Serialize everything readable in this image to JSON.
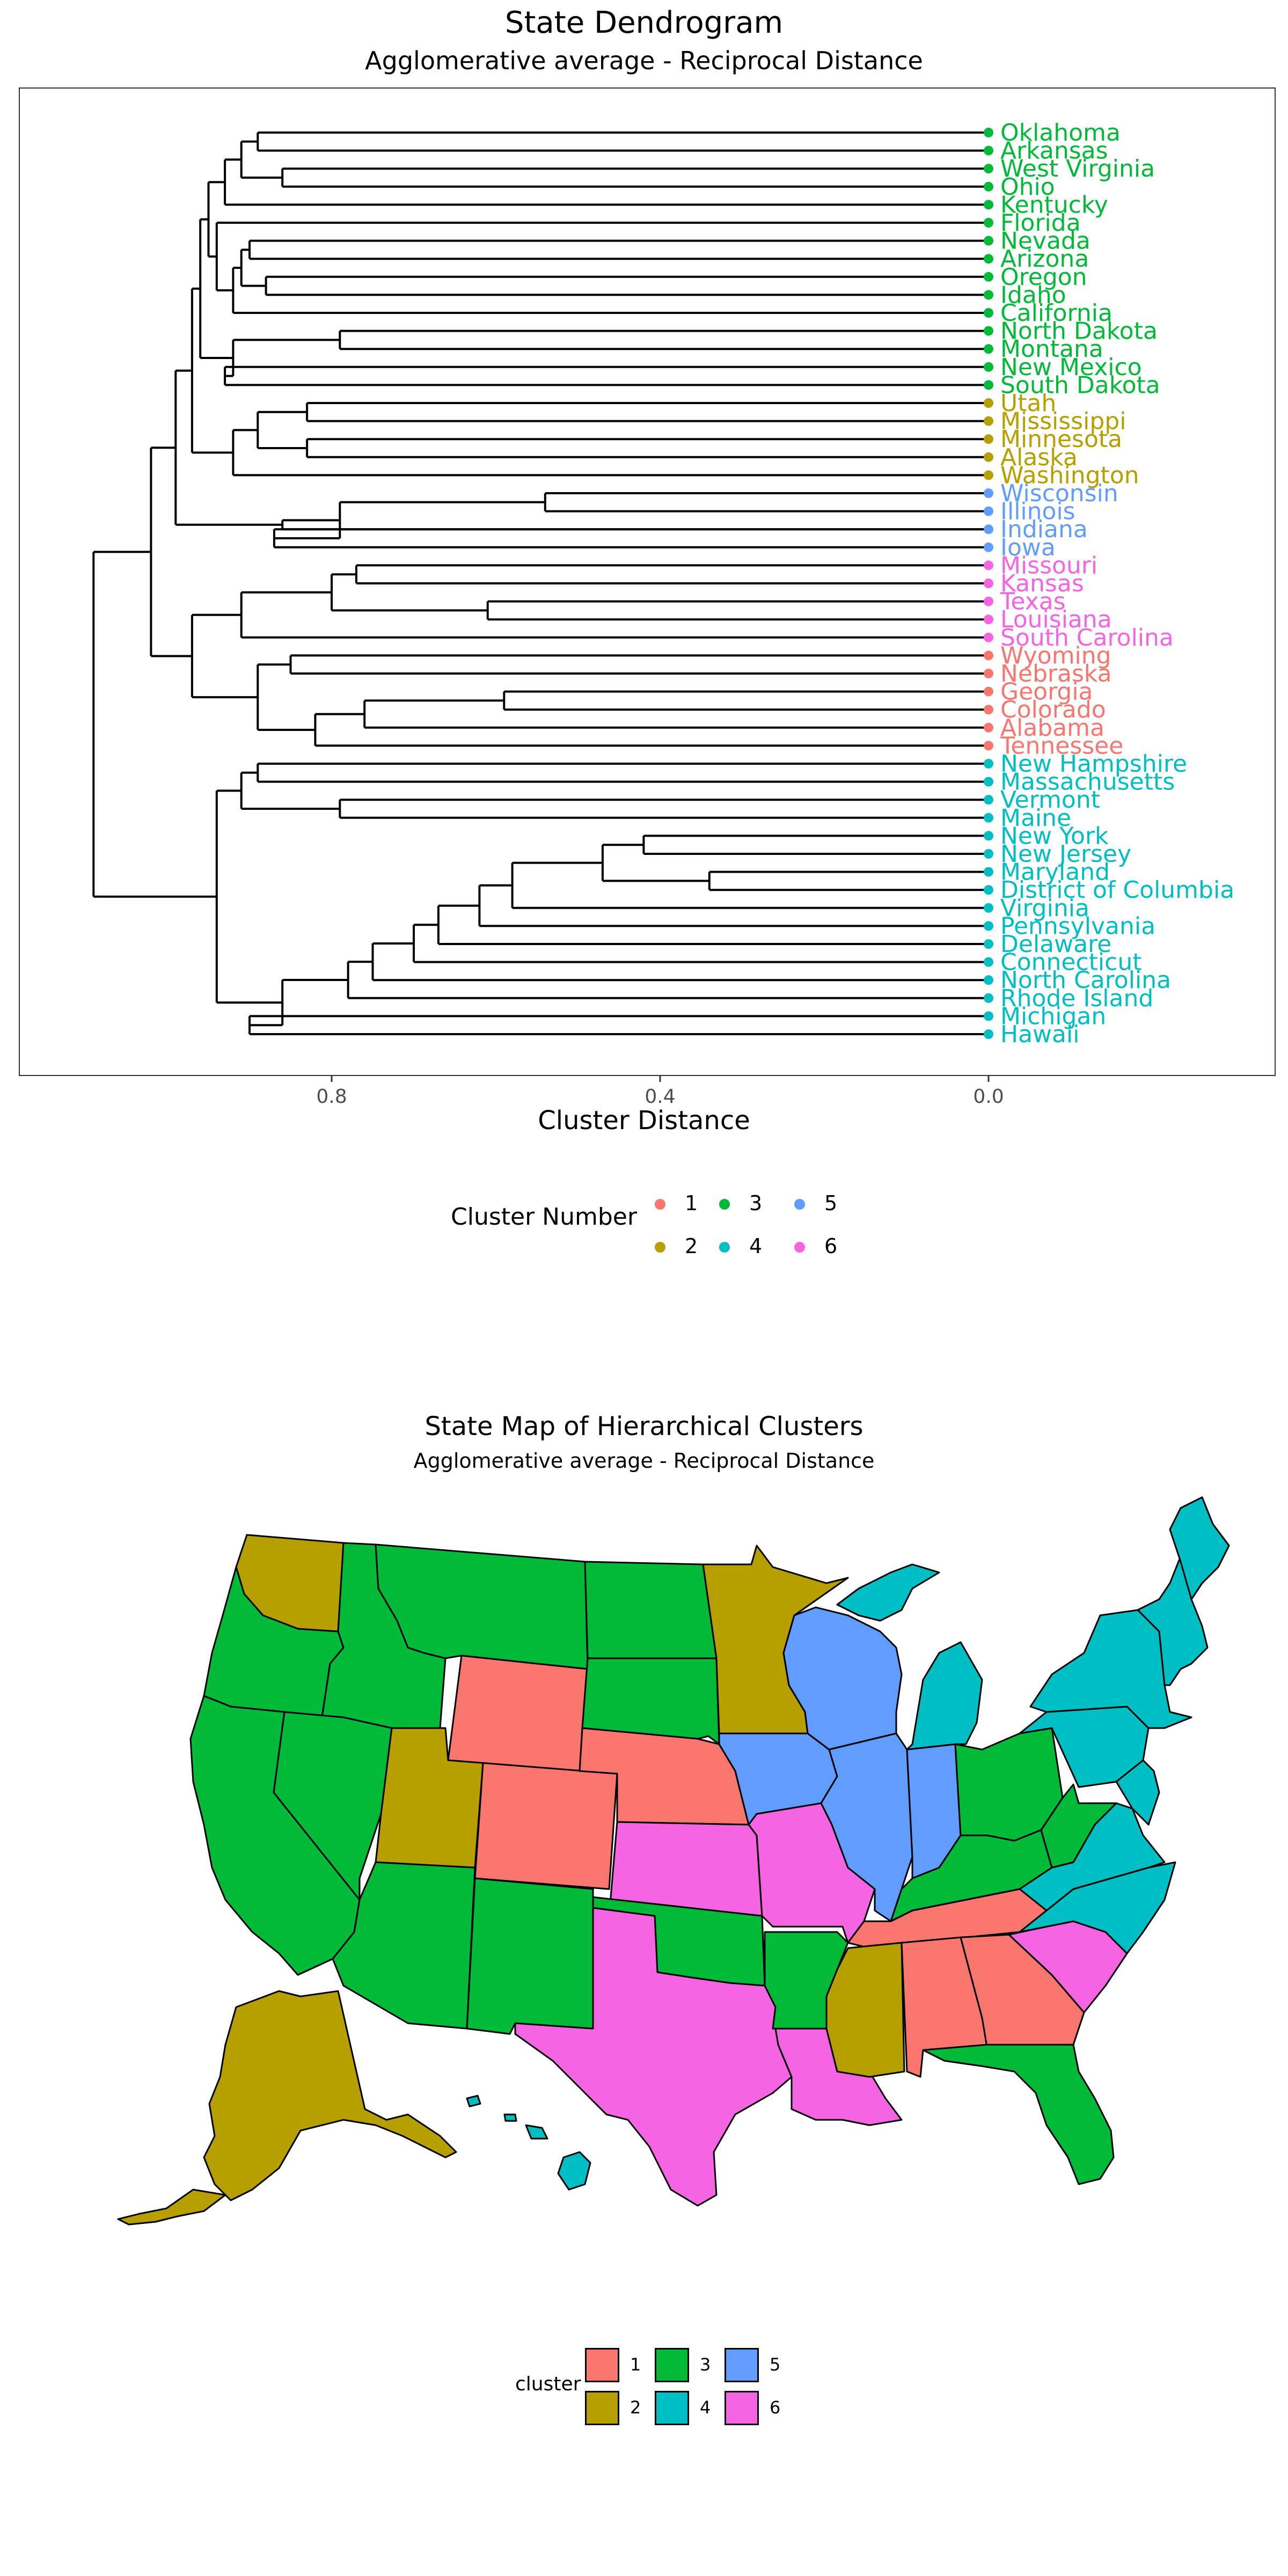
{
  "chart_data": [
    {
      "type": "dendrogram",
      "title": "State Dendrogram",
      "subtitle": "Agglomerative average - Reciprocal Distance",
      "xlabel": "Cluster Distance",
      "x_ticks": [
        "0.8",
        "0.4",
        "0.0"
      ],
      "x_tick_values": [
        0.8,
        0.4,
        0.0
      ],
      "xlim": [
        1.12,
        -0.7
      ],
      "grid": false,
      "legend_title": "Cluster Number",
      "legend_position": "bottom",
      "leaves": [
        {
          "label": "Oklahoma",
          "cluster": 3
        },
        {
          "label": "Arkansas",
          "cluster": 3
        },
        {
          "label": "West Virginia",
          "cluster": 3
        },
        {
          "label": "Ohio",
          "cluster": 3
        },
        {
          "label": "Kentucky",
          "cluster": 3
        },
        {
          "label": "Florida",
          "cluster": 3
        },
        {
          "label": "Nevada",
          "cluster": 3
        },
        {
          "label": "Arizona",
          "cluster": 3
        },
        {
          "label": "Oregon",
          "cluster": 3
        },
        {
          "label": "Idaho",
          "cluster": 3
        },
        {
          "label": "California",
          "cluster": 3
        },
        {
          "label": "North Dakota",
          "cluster": 3
        },
        {
          "label": "Montana",
          "cluster": 3
        },
        {
          "label": "New Mexico",
          "cluster": 3
        },
        {
          "label": "South Dakota",
          "cluster": 3
        },
        {
          "label": "Utah",
          "cluster": 2
        },
        {
          "label": "Mississippi",
          "cluster": 2
        },
        {
          "label": "Minnesota",
          "cluster": 2
        },
        {
          "label": "Alaska",
          "cluster": 2
        },
        {
          "label": "Washington",
          "cluster": 2
        },
        {
          "label": "Wisconsin",
          "cluster": 5
        },
        {
          "label": "Illinois",
          "cluster": 5
        },
        {
          "label": "Indiana",
          "cluster": 5
        },
        {
          "label": "Iowa",
          "cluster": 5
        },
        {
          "label": "Missouri",
          "cluster": 6
        },
        {
          "label": "Kansas",
          "cluster": 6
        },
        {
          "label": "Texas",
          "cluster": 6
        },
        {
          "label": "Louisiana",
          "cluster": 6
        },
        {
          "label": "South Carolina",
          "cluster": 6
        },
        {
          "label": "Wyoming",
          "cluster": 1
        },
        {
          "label": "Nebraska",
          "cluster": 1
        },
        {
          "label": "Georgia",
          "cluster": 1
        },
        {
          "label": "Colorado",
          "cluster": 1
        },
        {
          "label": "Alabama",
          "cluster": 1
        },
        {
          "label": "Tennessee",
          "cluster": 1
        },
        {
          "label": "New Hampshire",
          "cluster": 4
        },
        {
          "label": "Massachusetts",
          "cluster": 4
        },
        {
          "label": "Vermont",
          "cluster": 4
        },
        {
          "label": "Maine",
          "cluster": 4
        },
        {
          "label": "New York",
          "cluster": 4
        },
        {
          "label": "New Jersey",
          "cluster": 4
        },
        {
          "label": "Maryland",
          "cluster": 4
        },
        {
          "label": "District of Columbia",
          "cluster": 4
        },
        {
          "label": "Virginia",
          "cluster": 4
        },
        {
          "label": "Pennsylvania",
          "cluster": 4
        },
        {
          "label": "Delaware",
          "cluster": 4
        },
        {
          "label": "Connecticut",
          "cluster": 4
        },
        {
          "label": "North Carolina",
          "cluster": 4
        },
        {
          "label": "Rhode Island",
          "cluster": 4
        },
        {
          "label": "Michigan",
          "cluster": 4
        },
        {
          "label": "Hawaii",
          "cluster": 4
        }
      ],
      "merges": [
        {
          "a": "Oklahoma",
          "b": "Arkansas",
          "h": 0.89
        },
        {
          "a": "Nevada",
          "b": "Arizona",
          "h": 0.9
        },
        {
          "a": "Oregon",
          "b": "Idaho",
          "h": 0.88
        },
        {
          "a": "North Dakota",
          "b": "Montana",
          "h": 0.79
        },
        {
          "a": "New Mexico",
          "b": "South Dakota",
          "h": 0.93
        },
        {
          "a": "Utah",
          "b": "Mississippi",
          "h": 0.83
        },
        {
          "a": "Minnesota",
          "b": "Alaska",
          "h": 0.83
        },
        {
          "a": "Wisconsin",
          "b": "Illinois",
          "h": 0.54
        },
        {
          "a": "Indiana",
          "b": "Iowa",
          "h": 0.87
        },
        {
          "a": "Texas",
          "b": "Louisiana",
          "h": 0.61
        },
        {
          "a": "Wyoming",
          "b": "Nebraska",
          "h": 0.85
        },
        {
          "a": "Georgia",
          "b": "Colorado",
          "h": 0.59
        },
        {
          "a": "New Hampshire",
          "b": "Massachusetts",
          "h": 0.89
        },
        {
          "a": "Vermont",
          "b": "Maine",
          "h": 0.79
        },
        {
          "a": "New York",
          "b": "New Jersey",
          "h": 0.42
        },
        {
          "a": "Maryland",
          "b": "District of Columbia",
          "h": 0.34
        },
        {
          "a": "Michigan",
          "b": "Hawaii",
          "h": 0.9
        }
      ],
      "palette": {
        "1": "#F8766D",
        "2": "#B79F00",
        "3": "#00BA38",
        "4": "#00BFC4",
        "5": "#619CFF",
        "6": "#F564E3"
      }
    },
    {
      "type": "choropleth",
      "title": "State Map of Hierarchical Clusters",
      "subtitle": "Agglomerative average - Reciprocal Distance",
      "legend_title": "cluster",
      "legend_position": "bottom",
      "legend_keys": [
        "1",
        "2",
        "3",
        "4",
        "5",
        "6"
      ],
      "state_cluster": {
        "Washington": 2,
        "Oregon": 3,
        "California": 3,
        "Idaho": 3,
        "Nevada": 3,
        "Montana": 3,
        "Wyoming": 1,
        "Utah": 2,
        "Arizona": 3,
        "Colorado": 1,
        "New Mexico": 3,
        "North Dakota": 3,
        "South Dakota": 3,
        "Nebraska": 1,
        "Kansas": 6,
        "Oklahoma": 3,
        "Texas": 6,
        "Minnesota": 2,
        "Iowa": 5,
        "Missouri": 6,
        "Arkansas": 3,
        "Louisiana": 6,
        "Wisconsin": 5,
        "Illinois": 5,
        "Indiana": 5,
        "Michigan": 4,
        "Ohio": 3,
        "Kentucky": 3,
        "Tennessee": 1,
        "Mississippi": 2,
        "Alabama": 1,
        "Georgia": 1,
        "Florida": 3,
        "South Carolina": 6,
        "North Carolina": 4,
        "Virginia": 4,
        "West Virginia": 3,
        "Pennsylvania": 4,
        "New York": 4,
        "Maine": 4,
        "New England": 4,
        "Alaska": 2,
        "Hawaii": 4
      }
    }
  ]
}
